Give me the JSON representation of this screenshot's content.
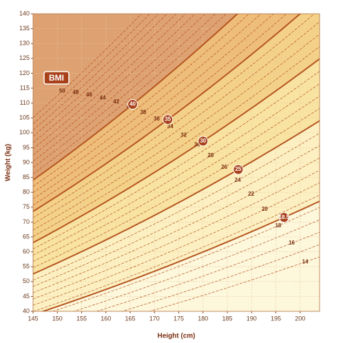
{
  "chart_data": {
    "type": "bmi",
    "badge": "BMI",
    "x_label": "Height (cm)",
    "y_label": "Weight (kg)",
    "xlim": [
      145,
      204
    ],
    "xticks": [
      145,
      150,
      155,
      160,
      165,
      170,
      175,
      180,
      185,
      190,
      195,
      200
    ],
    "ylim": [
      40,
      140
    ],
    "yticks": [
      40,
      45,
      50,
      55,
      60,
      65,
      70,
      75,
      80,
      85,
      90,
      95,
      100,
      105,
      110,
      115,
      120,
      125,
      130,
      135,
      140
    ],
    "grid": true,
    "minor": [
      14,
      15,
      16,
      17,
      18,
      19,
      20,
      21,
      22,
      23,
      24,
      25,
      26,
      27,
      28,
      29,
      30,
      31,
      32,
      33,
      34,
      35,
      36,
      37,
      38,
      39,
      40,
      41,
      42,
      43,
      44,
      45,
      46,
      47,
      48,
      49,
      50
    ],
    "major": [
      18.5,
      25,
      30,
      35,
      40
    ],
    "zone_colors": [
      "#fdf7dc",
      "#fcf0c2",
      "#f9e3a2",
      "#f4d189",
      "#eebd79",
      "#dea172"
    ],
    "line_color": "#b5541e"
  }
}
